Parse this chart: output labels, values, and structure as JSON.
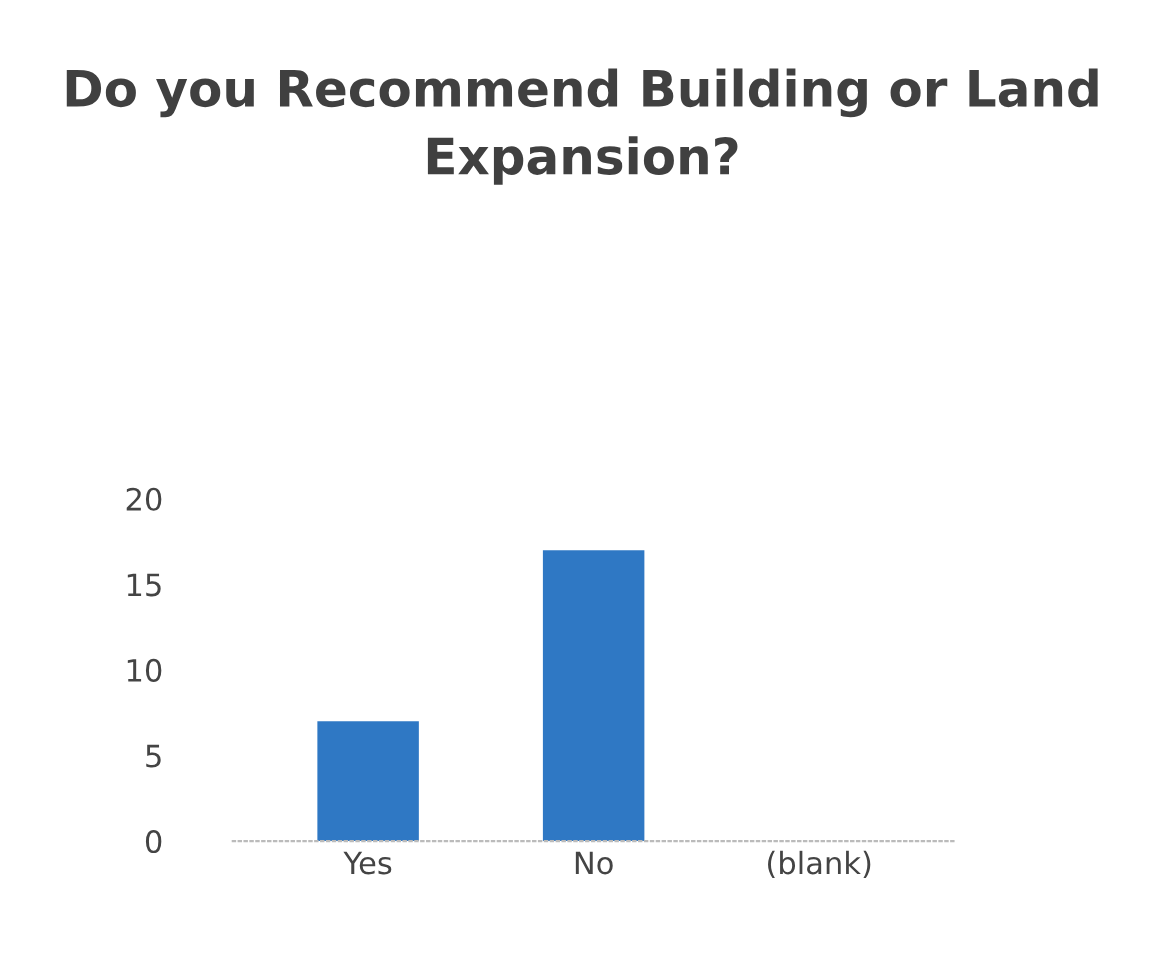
{
  "chart_data": {
    "type": "bar",
    "title": "Do you Recommend Building or Land Expansion?",
    "categories": [
      "Yes",
      "No",
      "(blank)"
    ],
    "values": [
      7,
      17,
      null
    ],
    "color": "#2f78c4",
    "ylim": [
      0,
      20
    ],
    "yticks": [
      0,
      5,
      10,
      15,
      20
    ],
    "grid": false,
    "legend": false
  }
}
